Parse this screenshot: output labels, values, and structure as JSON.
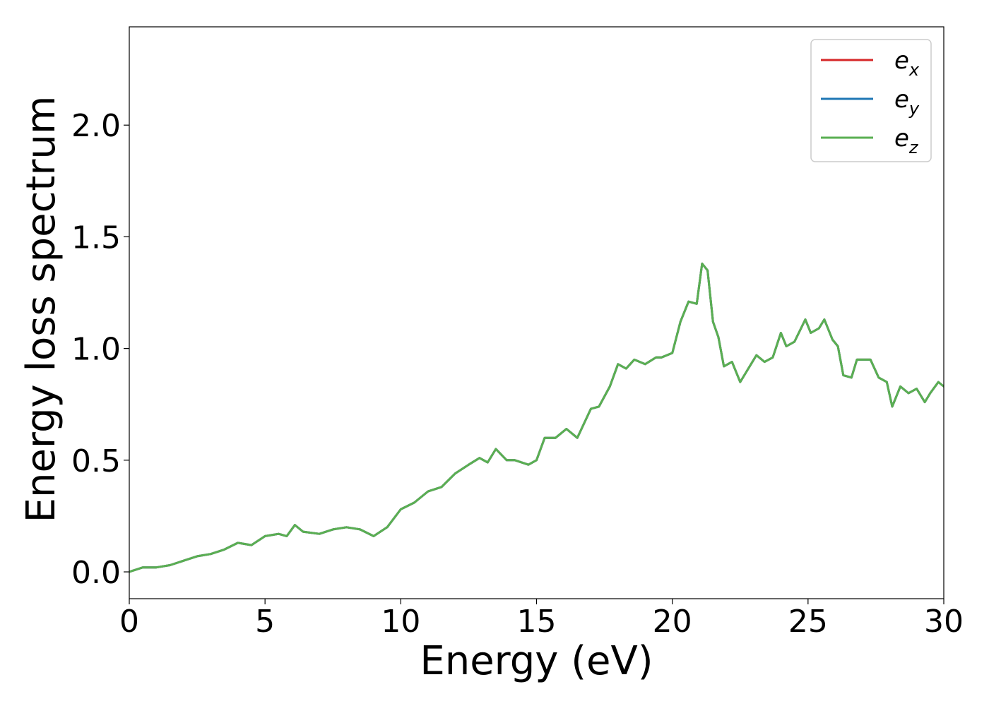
{
  "chart_data": {
    "type": "line",
    "title": "",
    "xlabel": "Energy (eV)",
    "ylabel": "Energy loss spectrum",
    "xlim": [
      0,
      30
    ],
    "ylim": [
      -0.12,
      2.44
    ],
    "xticks": [
      0,
      5,
      10,
      15,
      20,
      25,
      30
    ],
    "xtick_labels": [
      "0",
      "5",
      "10",
      "15",
      "20",
      "25",
      "30"
    ],
    "yticks": [
      0.0,
      0.5,
      1.0,
      1.5,
      2.0
    ],
    "ytick_labels": [
      "0.0",
      "0.5",
      "1.0",
      "1.5",
      "2.0"
    ],
    "grid": false,
    "legend_position": "top-right",
    "x": [
      0,
      0.5,
      1.0,
      1.5,
      2.0,
      2.5,
      3.0,
      3.5,
      4.0,
      4.5,
      5.0,
      5.5,
      5.8,
      6.1,
      6.4,
      7.0,
      7.5,
      8.0,
      8.5,
      9.0,
      9.5,
      10.0,
      10.5,
      11.0,
      11.5,
      12.0,
      12.5,
      12.9,
      13.2,
      13.5,
      13.9,
      14.2,
      14.7,
      15.0,
      15.3,
      15.7,
      16.1,
      16.5,
      17.0,
      17.3,
      17.7,
      18.0,
      18.3,
      18.6,
      19.0,
      19.4,
      19.6,
      20.0,
      20.3,
      20.6,
      20.9,
      21.1,
      21.3,
      21.5,
      21.7,
      21.9,
      22.2,
      22.5,
      22.8,
      23.1,
      23.4,
      23.7,
      24.0,
      24.2,
      24.5,
      24.9,
      25.1,
      25.4,
      25.6,
      25.9,
      26.1,
      26.3,
      26.6,
      26.8,
      27.0,
      27.3,
      27.6,
      27.9,
      28.1,
      28.4,
      28.7,
      29.0,
      29.3,
      29.5,
      29.8,
      30.0
    ],
    "series": [
      {
        "name": "e_x",
        "color": "#d62728",
        "y": [
          0.0,
          0.02,
          0.02,
          0.03,
          0.05,
          0.07,
          0.08,
          0.1,
          0.13,
          0.12,
          0.16,
          0.17,
          0.16,
          0.21,
          0.18,
          0.17,
          0.19,
          0.2,
          0.19,
          0.16,
          0.2,
          0.28,
          0.31,
          0.36,
          0.38,
          0.44,
          0.48,
          0.51,
          0.49,
          0.55,
          0.5,
          0.5,
          0.48,
          0.5,
          0.6,
          0.6,
          0.64,
          0.6,
          0.73,
          0.74,
          0.83,
          0.93,
          0.91,
          0.95,
          0.93,
          0.96,
          0.96,
          0.98,
          1.12,
          1.21,
          1.2,
          1.38,
          1.35,
          1.12,
          1.05,
          0.92,
          0.94,
          0.85,
          0.91,
          0.97,
          0.94,
          0.96,
          1.07,
          1.01,
          1.03,
          1.13,
          1.07,
          1.09,
          1.13,
          1.04,
          1.01,
          0.88,
          0.87,
          0.95,
          0.95,
          0.95,
          0.87,
          0.85,
          0.74,
          0.83,
          0.8,
          0.82,
          0.76,
          0.8,
          0.85,
          0.83
        ]
      },
      {
        "name": "e_y",
        "color": "#1f77b4",
        "y": [
          0.0,
          0.02,
          0.02,
          0.03,
          0.05,
          0.07,
          0.08,
          0.1,
          0.13,
          0.12,
          0.16,
          0.17,
          0.16,
          0.21,
          0.18,
          0.17,
          0.19,
          0.2,
          0.19,
          0.16,
          0.2,
          0.28,
          0.31,
          0.36,
          0.38,
          0.44,
          0.48,
          0.51,
          0.49,
          0.55,
          0.5,
          0.5,
          0.48,
          0.5,
          0.6,
          0.6,
          0.64,
          0.6,
          0.73,
          0.74,
          0.83,
          0.93,
          0.91,
          0.95,
          0.93,
          0.96,
          0.96,
          0.98,
          1.12,
          1.21,
          1.2,
          1.38,
          1.35,
          1.12,
          1.05,
          0.92,
          0.94,
          0.85,
          0.91,
          0.97,
          0.94,
          0.96,
          1.07,
          1.01,
          1.03,
          1.13,
          1.07,
          1.09,
          1.13,
          1.04,
          1.01,
          0.88,
          0.87,
          0.95,
          0.95,
          0.95,
          0.87,
          0.85,
          0.74,
          0.83,
          0.8,
          0.82,
          0.76,
          0.8,
          0.85,
          0.83
        ]
      },
      {
        "name": "e_z",
        "color": "#5aaf52",
        "y": [
          0.0,
          0.02,
          0.02,
          0.03,
          0.05,
          0.07,
          0.08,
          0.1,
          0.13,
          0.12,
          0.16,
          0.17,
          0.16,
          0.21,
          0.18,
          0.17,
          0.19,
          0.2,
          0.19,
          0.16,
          0.2,
          0.28,
          0.31,
          0.36,
          0.38,
          0.44,
          0.48,
          0.51,
          0.49,
          0.55,
          0.5,
          0.5,
          0.48,
          0.5,
          0.6,
          0.6,
          0.64,
          0.6,
          0.73,
          0.74,
          0.83,
          0.93,
          0.91,
          0.95,
          0.93,
          0.96,
          0.96,
          0.98,
          1.12,
          1.21,
          1.2,
          1.38,
          1.35,
          1.12,
          1.05,
          0.92,
          0.94,
          0.85,
          0.91,
          0.97,
          0.94,
          0.96,
          1.07,
          1.01,
          1.03,
          1.13,
          1.07,
          1.09,
          1.13,
          1.04,
          1.01,
          0.88,
          0.87,
          0.95,
          0.95,
          0.95,
          0.87,
          0.85,
          0.74,
          0.83,
          0.8,
          0.82,
          0.76,
          0.8,
          0.85,
          0.83
        ]
      }
    ],
    "legend": [
      {
        "base": "e",
        "sub": "x",
        "color": "#d62728"
      },
      {
        "base": "e",
        "sub": "y",
        "color": "#1f77b4"
      },
      {
        "base": "e",
        "sub": "z",
        "color": "#5aaf52"
      }
    ]
  }
}
